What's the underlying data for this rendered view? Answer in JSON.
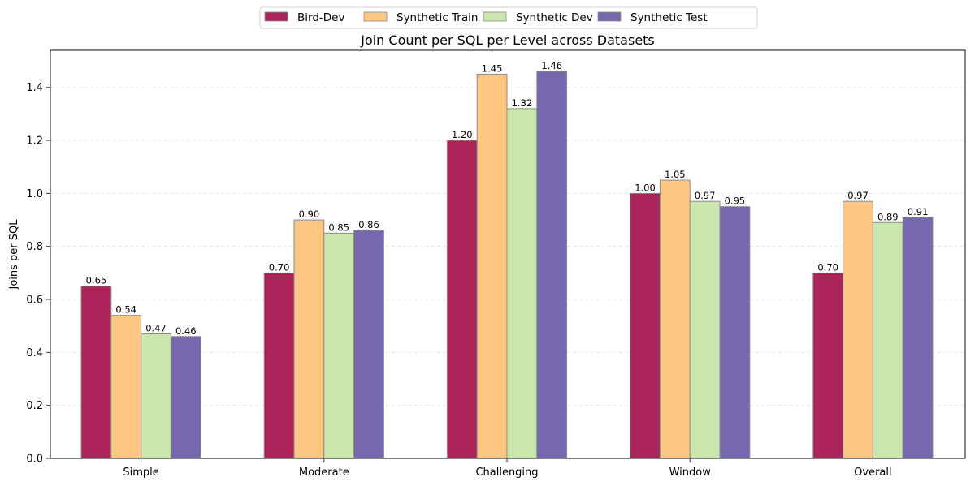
{
  "chart_data": {
    "type": "bar",
    "title": "Join Count per SQL per Level across Datasets",
    "xlabel": "",
    "ylabel": "Joins per SQL",
    "categories": [
      "Simple",
      "Moderate",
      "Challenging",
      "Window",
      "Overall"
    ],
    "series": [
      {
        "name": "Bird-Dev",
        "color": "#ab2459",
        "values": [
          0.65,
          0.7,
          1.2,
          1.0,
          0.7
        ]
      },
      {
        "name": "Synthetic Train",
        "color": "#fdc682",
        "values": [
          0.54,
          0.9,
          1.45,
          1.05,
          0.97
        ]
      },
      {
        "name": "Synthetic Dev",
        "color": "#c9e7ad",
        "values": [
          0.47,
          0.85,
          1.32,
          0.97,
          0.89
        ]
      },
      {
        "name": "Synthetic Test",
        "color": "#7667ae",
        "values": [
          0.46,
          0.86,
          1.46,
          0.95,
          0.91
        ]
      }
    ],
    "data_labels": [
      [
        "0.65",
        "0.70",
        "1.20",
        "1.00",
        "0.70"
      ],
      [
        "0.54",
        "0.90",
        "1.45",
        "1.05",
        "0.97"
      ],
      [
        "0.47",
        "0.85",
        "1.32",
        "0.97",
        "0.89"
      ],
      [
        "0.46",
        "0.86",
        "1.46",
        "0.95",
        "0.91"
      ]
    ],
    "yticks": [
      0.0,
      0.2,
      0.4,
      0.6,
      0.8,
      1.0,
      1.2,
      1.4
    ],
    "ytick_labels": [
      "0.0",
      "0.2",
      "0.4",
      "0.6",
      "0.8",
      "1.0",
      "1.2",
      "1.4"
    ],
    "ylim": [
      0,
      1.54
    ],
    "grid": "y-dashed",
    "legend_position": "top-center",
    "bar_edge_color": "#8c8c8c",
    "grid_color": "#e0e0e0"
  }
}
